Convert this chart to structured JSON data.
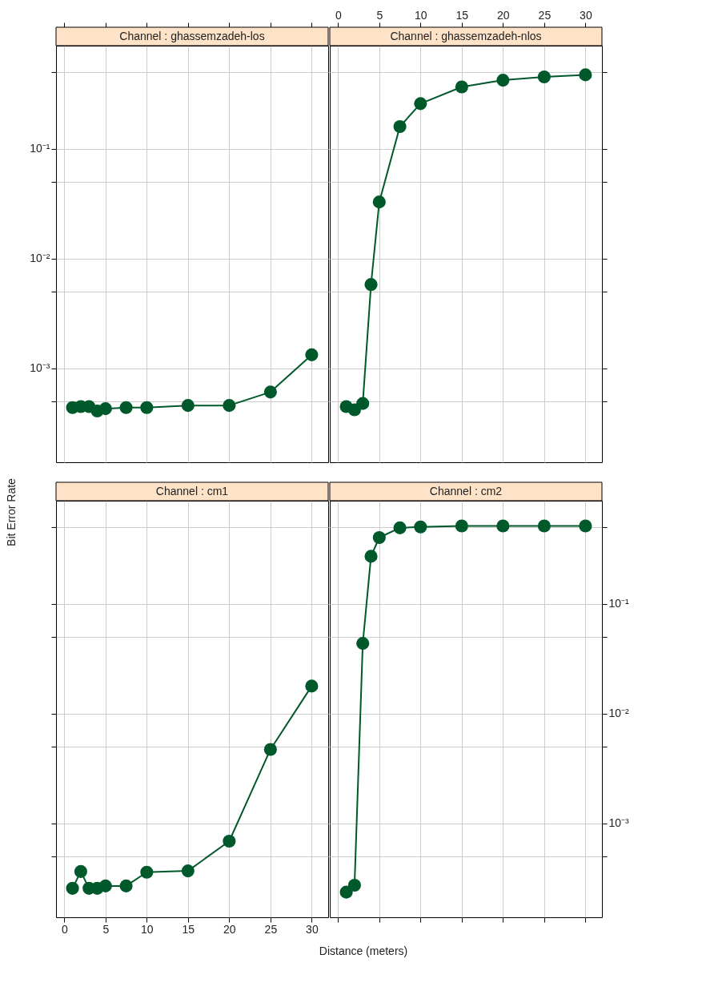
{
  "chart_data": [
    {
      "type": "line",
      "title": "Channel : ghassemzadeh-los",
      "ylabel": "Bit Error Rate",
      "x": [
        1,
        2,
        3,
        4,
        5,
        7.5,
        10,
        15,
        20,
        25,
        30
      ],
      "log": true,
      "grid": true,
      "marker": "circle",
      "line_style": "solid",
      "tick_labels": "y",
      "series": [
        {
          "color": "#00592a",
          "values": [
            0.00044,
            0.00045,
            0.00045,
            0.00041,
            0.00043,
            0.00044,
            0.00044,
            0.00046,
            0.00046,
            0.00061,
            0.00133
          ]
        }
      ],
      "xlim": [
        -1,
        32
      ],
      "xticks": [
        0,
        5,
        10,
        15,
        20,
        25,
        30
      ],
      "ylim": [
        0.00014,
        0.866
      ],
      "yticks": [
        {
          "value": 0.0005,
          "label": null
        },
        {
          "value": 0.001,
          "label": "10⁻³"
        },
        {
          "value": 0.005,
          "label": null
        },
        {
          "value": 0.01,
          "label": "10⁻²"
        },
        {
          "value": 0.05,
          "label": null
        },
        {
          "value": 0.1,
          "label": "10⁻¹"
        },
        {
          "value": 0.5,
          "label": null
        }
      ]
    },
    {
      "type": "line",
      "title": "Channel : ghassemzadeh-nlos",
      "x": [
        1,
        2,
        3,
        4,
        5,
        7.5,
        10,
        15,
        20,
        25,
        30
      ],
      "log": true,
      "grid": true,
      "marker": "circle",
      "line_style": "solid",
      "tick_labels": "x",
      "series": [
        {
          "color": "#00592a",
          "values": [
            0.00045,
            0.00042,
            0.00048,
            0.0058,
            0.0327,
            0.159,
            0.257,
            0.365,
            0.42,
            0.45,
            0.47
          ]
        }
      ],
      "xlim": [
        -1,
        32
      ],
      "xticks": [
        0,
        5,
        10,
        15,
        20,
        25,
        30
      ],
      "ylim": [
        0.00014,
        0.866
      ],
      "yticks": [
        {
          "value": 0.0005,
          "label": null
        },
        {
          "value": 0.001,
          "label": null
        },
        {
          "value": 0.005,
          "label": null
        },
        {
          "value": 0.01,
          "label": null
        },
        {
          "value": 0.05,
          "label": null
        },
        {
          "value": 0.1,
          "label": null
        },
        {
          "value": 0.5,
          "label": null
        }
      ]
    },
    {
      "type": "line",
      "title": "Channel : cm1",
      "xlabel": "Distance (meters)",
      "x": [
        1,
        2,
        3,
        4,
        5,
        7.5,
        10,
        15,
        20,
        25,
        30
      ],
      "log": true,
      "grid": true,
      "marker": "circle",
      "line_style": "solid",
      "tick_labels": "x",
      "series": [
        {
          "color": "#00592a",
          "values": [
            0.000257,
            0.000365,
            0.000257,
            0.000257,
            0.00027,
            0.00027,
            0.00036,
            0.00037,
            0.00069,
            0.00472,
            0.0178
          ]
        }
      ],
      "xlim": [
        -1,
        32
      ],
      "xticks": [
        0,
        5,
        10,
        15,
        20,
        25,
        30
      ],
      "ylim": [
        0.00014,
        0.866
      ],
      "yticks": [
        {
          "value": 0.0005,
          "label": null
        },
        {
          "value": 0.001,
          "label": null
        },
        {
          "value": 0.005,
          "label": null
        },
        {
          "value": 0.01,
          "label": null
        },
        {
          "value": 0.05,
          "label": null
        },
        {
          "value": 0.1,
          "label": null
        },
        {
          "value": 0.5,
          "label": null
        }
      ]
    },
    {
      "type": "line",
      "title": "Channel : cm2",
      "x": [
        1,
        2,
        3,
        4,
        5,
        7.5,
        10,
        15,
        20,
        25,
        30
      ],
      "log": true,
      "grid": true,
      "marker": "circle",
      "line_style": "solid",
      "tick_labels": "y",
      "series": [
        {
          "color": "#00592a",
          "values": [
            0.000237,
            0.000274,
            0.0435,
            0.27,
            0.4,
            0.49,
            0.5,
            0.51,
            0.51,
            0.51,
            0.51
          ]
        }
      ],
      "xlim": [
        -1,
        32
      ],
      "xticks": [
        0,
        5,
        10,
        15,
        20,
        25,
        30
      ],
      "ylim": [
        0.00014,
        0.866
      ],
      "yticks": [
        {
          "value": 0.0005,
          "label": null
        },
        {
          "value": 0.001,
          "label": "10⁻³"
        },
        {
          "value": 0.005,
          "label": null
        },
        {
          "value": 0.01,
          "label": "10⁻²"
        },
        {
          "value": 0.05,
          "label": null
        },
        {
          "value": 0.1,
          "label": "10⁻¹"
        },
        {
          "value": 0.5,
          "label": null
        }
      ]
    }
  ]
}
